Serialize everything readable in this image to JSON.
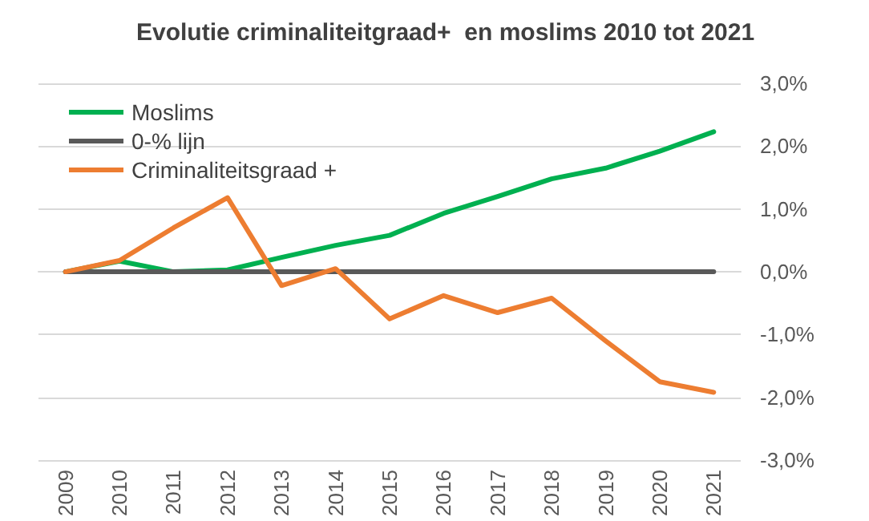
{
  "chart_data": {
    "type": "line",
    "title": "Evolutie criminaliteitgraad+  en moslims 2010 tot 2021",
    "categories": [
      "2009",
      "2010",
      "2011",
      "2012",
      "2013",
      "2014",
      "2015",
      "2016",
      "2017",
      "2018",
      "2019",
      "2020",
      "2021"
    ],
    "series": [
      {
        "name": "Moslims",
        "color": "#00b050",
        "values": [
          0,
          0.17,
          0,
          0.03,
          0.23,
          0.42,
          0.58,
          0.93,
          1.2,
          1.48,
          1.65,
          1.92,
          2.23
        ]
      },
      {
        "name": "0-% lijn",
        "color": "#595959",
        "values": [
          0,
          0,
          0,
          0,
          0,
          0,
          0,
          0,
          0,
          0,
          0,
          0,
          0
        ]
      },
      {
        "name": "Criminaliteitsgraad +",
        "color": "#ed7d31",
        "values": [
          0,
          0.18,
          0.7,
          1.18,
          -0.22,
          0.05,
          -0.75,
          -0.38,
          -0.65,
          -0.42,
          -1.1,
          -1.75,
          -1.92
        ]
      }
    ],
    "ylim": [
      -3,
      3
    ],
    "yticks": [
      {
        "value": -3,
        "label": "-3,0%"
      },
      {
        "value": -2,
        "label": "-2,0%"
      },
      {
        "value": -1,
        "label": "-1,0%"
      },
      {
        "value": 0,
        "label": "0,0%"
      },
      {
        "value": 1,
        "label": "1,0%"
      },
      {
        "value": 2,
        "label": "2,0%"
      },
      {
        "value": 3,
        "label": "3,0%"
      }
    ],
    "grid": "y",
    "legend": "top left",
    "marker": "none",
    "line_style": "solid"
  }
}
